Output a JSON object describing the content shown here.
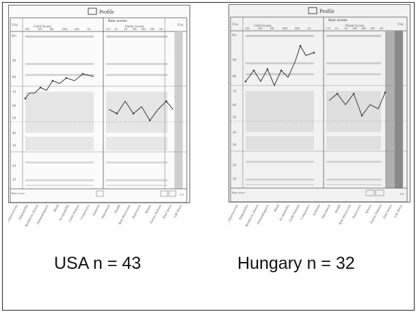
{
  "header": {
    "icon": "profile-logo-icon",
    "title": "Profile",
    "raw_scores": "Raw scores"
  },
  "section_labels": {
    "child": "Child Scores",
    "parent": "Parent Scores"
  },
  "t_label": "T-Sc",
  "child_cols": [
    "DE",
    "AD",
    "RE",
    "DM",
    "MO",
    "AC"
  ],
  "parent_cols": [
    "CO",
    "IS",
    "AT",
    "HE",
    "RO",
    "DP",
    "SP"
  ],
  "row_labels": [
    "99+",
    "90",
    "80",
    "70",
    "60",
    "50",
    "40",
    "30",
    "20",
    "10"
  ],
  "raw_score_label": "Raw score",
  "total_label": "LS",
  "rotated_labels": [
    "Distractibility/Hyperactivity",
    "Adaptability",
    "Reinforces Parent",
    "Demandingness",
    "Mood",
    "Acceptability",
    "Child Domain",
    "Competence",
    "Isolation",
    "Attachment",
    "Health",
    "Role Restriction",
    "Depression",
    "Spouse",
    "Parent Domain",
    "Total Stress",
    "Life Stress"
  ],
  "captions": {
    "usa": "USA n = 43",
    "hungary": "Hungary n = 32"
  },
  "colors": {
    "ink": "#555555",
    "line": "#333333",
    "band": "#cfcfcf",
    "dark_col": "#8a8a8a"
  }
}
